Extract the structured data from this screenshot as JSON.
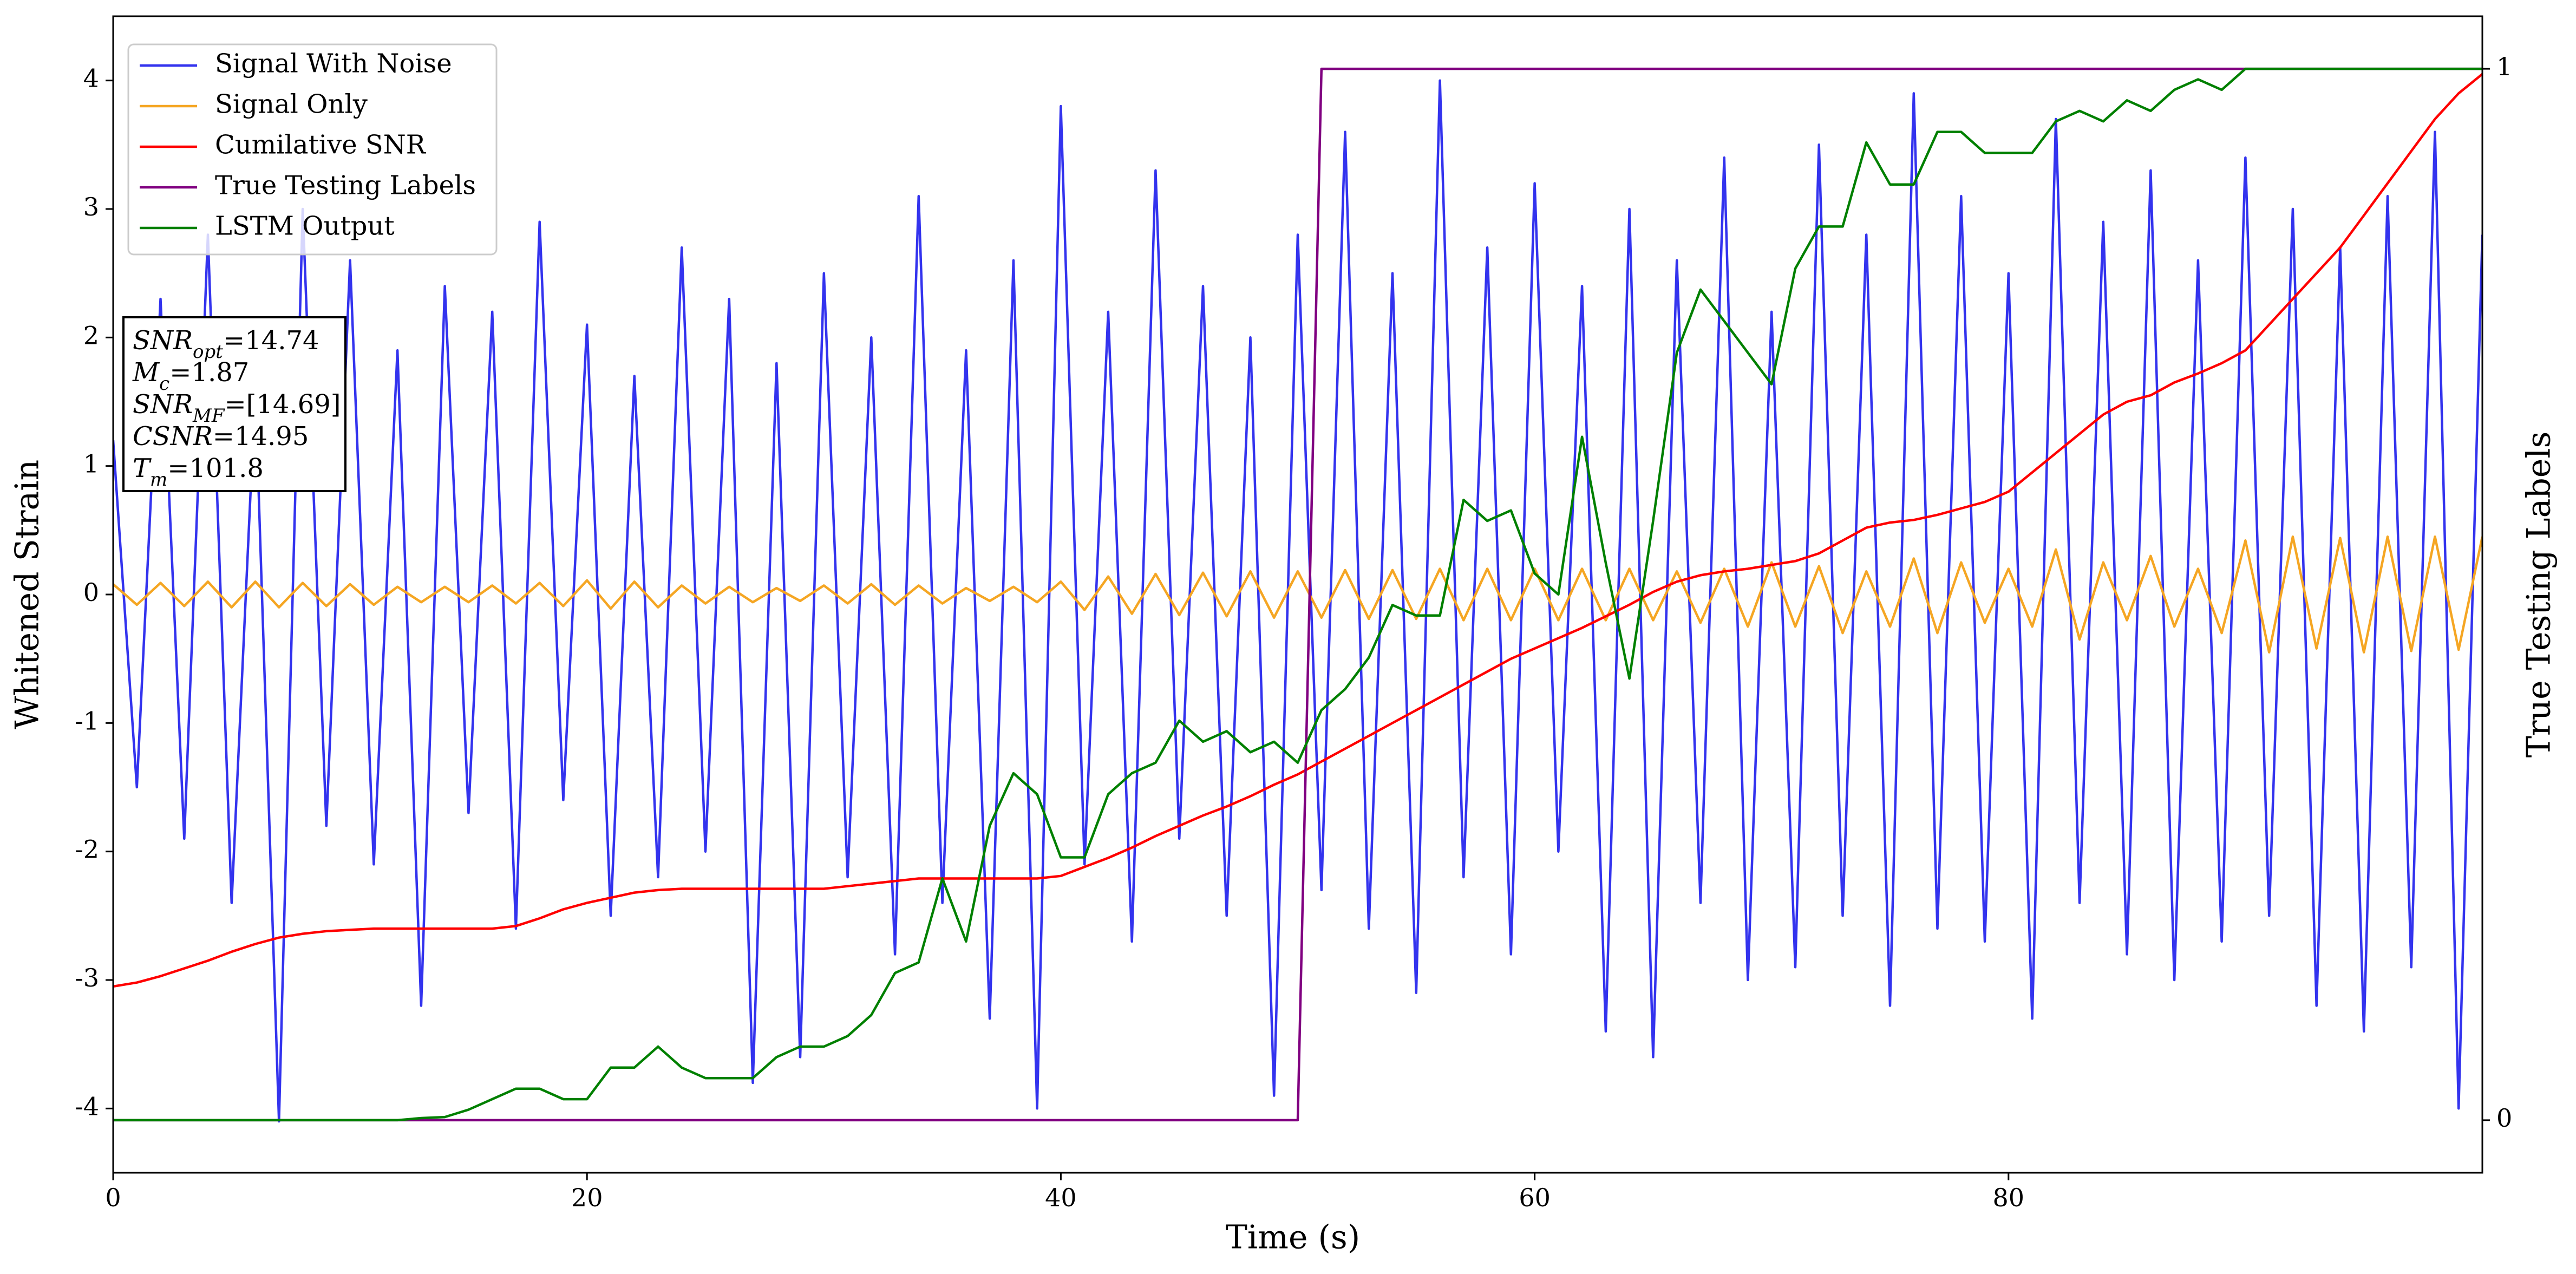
{
  "chart_data": {
    "type": "line",
    "xlabel": "Time (s)",
    "ylabel": "Whitened Strain",
    "y2label": "True Testing Labels",
    "xlim": [
      0,
      100
    ],
    "xticks": [
      0,
      20,
      40,
      60,
      80
    ],
    "ylim": [
      -4.5,
      4.5
    ],
    "yticks": [
      -4,
      -3,
      -2,
      -1,
      0,
      1,
      2,
      3,
      4
    ],
    "y2lim": [
      -0.05,
      1.05
    ],
    "y2ticks": [
      0,
      1
    ],
    "legend": "upper left",
    "x": [
      0,
      1,
      2,
      3,
      4,
      5,
      6,
      7,
      8,
      9,
      10,
      11,
      12,
      13,
      14,
      15,
      16,
      17,
      18,
      19,
      20,
      21,
      22,
      23,
      24,
      25,
      26,
      27,
      28,
      29,
      30,
      31,
      32,
      33,
      34,
      35,
      36,
      37,
      38,
      39,
      40,
      41,
      42,
      43,
      44,
      45,
      46,
      47,
      48,
      49,
      50,
      51,
      52,
      53,
      54,
      55,
      56,
      57,
      58,
      59,
      60,
      61,
      62,
      63,
      64,
      65,
      66,
      67,
      68,
      69,
      70,
      71,
      72,
      73,
      74,
      75,
      76,
      77,
      78,
      79,
      80,
      81,
      82,
      83,
      84,
      85,
      86,
      87,
      88,
      89,
      90,
      91,
      92,
      93,
      94,
      95,
      96,
      97,
      98,
      99,
      100
    ],
    "series": [
      {
        "name": "Signal With Noise",
        "color": "#3333ee",
        "values": [
          1.2,
          -1.5,
          2.3,
          -1.9,
          2.8,
          -2.4,
          1.6,
          -4.1,
          3.0,
          -1.8,
          2.6,
          -2.1,
          1.9,
          -3.2,
          2.4,
          -1.7,
          2.2,
          -2.6,
          2.9,
          -1.6,
          2.1,
          -2.5,
          1.7,
          -2.2,
          2.7,
          -2.0,
          2.3,
          -3.8,
          1.8,
          -3.6,
          2.5,
          -2.2,
          2.0,
          -2.8,
          3.1,
          -2.4,
          1.9,
          -3.3,
          2.6,
          -4.0,
          3.8,
          -2.1,
          2.2,
          -2.7,
          3.3,
          -1.9,
          2.4,
          -2.5,
          2.0,
          -3.9,
          2.8,
          -2.3,
          3.6,
          -2.6,
          2.5,
          -3.1,
          4.0,
          -2.2,
          2.7,
          -2.8,
          3.2,
          -2.0,
          2.4,
          -3.4,
          3.0,
          -3.6,
          2.6,
          -2.4,
          3.4,
          -3.0,
          2.2,
          -2.9,
          3.5,
          -2.5,
          2.8,
          -3.2,
          3.9,
          -2.6,
          3.1,
          -2.7,
          2.5,
          -3.3,
          3.7,
          -2.4,
          2.9,
          -2.8,
          3.3,
          -3.0,
          2.6,
          -2.7,
          3.4,
          -2.5,
          3.0,
          -3.2,
          2.7,
          -3.4,
          3.1,
          -2.9,
          3.6,
          -4.0,
          2.8
        ]
      },
      {
        "name": "Signal Only",
        "color": "#f5a623",
        "values": [
          0.08,
          -0.08,
          0.09,
          -0.09,
          0.1,
          -0.1,
          0.1,
          -0.1,
          0.09,
          -0.09,
          0.08,
          -0.08,
          0.06,
          -0.06,
          0.06,
          -0.06,
          0.07,
          -0.07,
          0.09,
          -0.09,
          0.11,
          -0.11,
          0.1,
          -0.1,
          0.07,
          -0.07,
          0.06,
          -0.06,
          0.05,
          -0.05,
          0.07,
          -0.07,
          0.08,
          -0.08,
          0.07,
          -0.07,
          0.05,
          -0.05,
          0.06,
          -0.06,
          0.1,
          -0.12,
          0.14,
          -0.15,
          0.16,
          -0.16,
          0.17,
          -0.17,
          0.18,
          -0.18,
          0.18,
          -0.18,
          0.19,
          -0.19,
          0.19,
          -0.19,
          0.2,
          -0.2,
          0.2,
          -0.2,
          0.2,
          -0.2,
          0.2,
          -0.2,
          0.2,
          -0.2,
          0.18,
          -0.22,
          0.2,
          -0.25,
          0.25,
          -0.25,
          0.22,
          -0.3,
          0.18,
          -0.25,
          0.28,
          -0.3,
          0.25,
          -0.22,
          0.2,
          -0.25,
          0.35,
          -0.35,
          0.25,
          -0.2,
          0.3,
          -0.25,
          0.2,
          -0.3,
          0.42,
          -0.45,
          0.45,
          -0.42,
          0.44,
          -0.45,
          0.45,
          -0.44,
          0.45,
          -0.43,
          0.45
        ]
      },
      {
        "name": "Cumilative SNR",
        "color": "#ff0000",
        "values": [
          -3.05,
          -3.02,
          -2.97,
          -2.91,
          -2.85,
          -2.78,
          -2.72,
          -2.67,
          -2.64,
          -2.62,
          -2.61,
          -2.6,
          -2.6,
          -2.6,
          -2.6,
          -2.6,
          -2.6,
          -2.58,
          -2.52,
          -2.45,
          -2.4,
          -2.36,
          -2.32,
          -2.3,
          -2.29,
          -2.29,
          -2.29,
          -2.29,
          -2.29,
          -2.29,
          -2.29,
          -2.27,
          -2.25,
          -2.23,
          -2.21,
          -2.21,
          -2.21,
          -2.21,
          -2.21,
          -2.21,
          -2.19,
          -2.12,
          -2.05,
          -1.97,
          -1.88,
          -1.8,
          -1.72,
          -1.65,
          -1.57,
          -1.48,
          -1.4,
          -1.3,
          -1.2,
          -1.1,
          -1.0,
          -0.9,
          -0.8,
          -0.7,
          -0.6,
          -0.5,
          -0.42,
          -0.34,
          -0.26,
          -0.17,
          -0.08,
          0.02,
          0.1,
          0.15,
          0.18,
          0.2,
          0.23,
          0.26,
          0.32,
          0.42,
          0.52,
          0.56,
          0.58,
          0.62,
          0.67,
          0.72,
          0.8,
          0.95,
          1.1,
          1.25,
          1.4,
          1.5,
          1.55,
          1.65,
          1.72,
          1.8,
          1.9,
          2.1,
          2.3,
          2.5,
          2.7,
          2.95,
          3.2,
          3.45,
          3.7,
          3.9,
          4.05
        ]
      },
      {
        "name": "True Testing Labels",
        "color": "#800080",
        "axis": "y2",
        "values": [
          0,
          0,
          0,
          0,
          0,
          0,
          0,
          0,
          0,
          0,
          0,
          0,
          0,
          0,
          0,
          0,
          0,
          0,
          0,
          0,
          0,
          0,
          0,
          0,
          0,
          0,
          0,
          0,
          0,
          0,
          0,
          0,
          0,
          0,
          0,
          0,
          0,
          0,
          0,
          0,
          0,
          0,
          0,
          0,
          0,
          0,
          0,
          0,
          0,
          0,
          0,
          1,
          1,
          1,
          1,
          1,
          1,
          1,
          1,
          1,
          1,
          1,
          1,
          1,
          1,
          1,
          1,
          1,
          1,
          1,
          1,
          1,
          1,
          1,
          1,
          1,
          1,
          1,
          1,
          1,
          1,
          1,
          1,
          1,
          1,
          1,
          1,
          1,
          1,
          1,
          1,
          1,
          1,
          1,
          1,
          1,
          1,
          1,
          1,
          1,
          1
        ]
      },
      {
        "name": "LSTM Output",
        "color": "#008000",
        "axis": "y2",
        "values": [
          0,
          0,
          0,
          0,
          0,
          0,
          0,
          0,
          0,
          0,
          0,
          0,
          0,
          0.002,
          0.003,
          0.01,
          0.02,
          0.03,
          0.03,
          0.02,
          0.02,
          0.05,
          0.05,
          0.07,
          0.05,
          0.04,
          0.04,
          0.04,
          0.06,
          0.07,
          0.07,
          0.08,
          0.1,
          0.14,
          0.15,
          0.23,
          0.17,
          0.28,
          0.33,
          0.31,
          0.25,
          0.25,
          0.31,
          0.33,
          0.34,
          0.38,
          0.36,
          0.37,
          0.35,
          0.36,
          0.34,
          0.39,
          0.41,
          0.44,
          0.49,
          0.48,
          0.48,
          0.59,
          0.57,
          0.58,
          0.52,
          0.5,
          0.65,
          0.53,
          0.42,
          0.57,
          0.73,
          0.79,
          0.76,
          0.73,
          0.7,
          0.81,
          0.85,
          0.85,
          0.93,
          0.89,
          0.89,
          0.94,
          0.94,
          0.92,
          0.92,
          0.92,
          0.95,
          0.96,
          0.95,
          0.97,
          0.96,
          0.98,
          0.99,
          0.98,
          1,
          1,
          1,
          1,
          1,
          1,
          1,
          1,
          1,
          1,
          1
        ]
      }
    ],
    "annotation": [
      {
        "name": "SNR",
        "sub": "opt",
        "value": "=14.74"
      },
      {
        "name": "M",
        "sub": "c",
        "value": "=1.87"
      },
      {
        "name": "SNR",
        "sub": "MF",
        "value": "=[14.69]"
      },
      {
        "name": "CSNR",
        "value": "=14.95"
      },
      {
        "name": "T",
        "sub": "m",
        "value": "=101.8"
      }
    ]
  }
}
